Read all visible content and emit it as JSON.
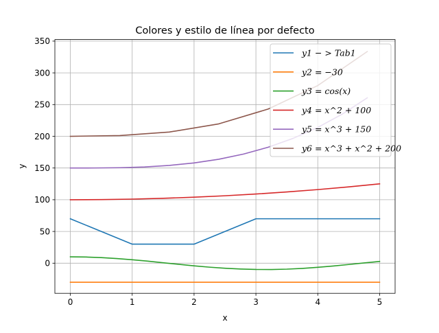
{
  "chart_data": {
    "type": "line",
    "title": "Colores y estilo de línea por defecto",
    "xlabel": "x",
    "ylabel": "y",
    "xlim": [
      -0.25,
      5.25
    ],
    "ylim": [
      -47.5,
      352.5
    ],
    "xticks": [
      0,
      1,
      2,
      3,
      4,
      5
    ],
    "xtick_labels": [
      "0",
      "1",
      "2",
      "3",
      "4",
      "5"
    ],
    "yticks": [
      0,
      50,
      100,
      150,
      200,
      250,
      300,
      350
    ],
    "ytick_labels": [
      "0",
      "50",
      "100",
      "150",
      "200",
      "250",
      "300",
      "350"
    ],
    "grid": true,
    "legend_position": "top-right",
    "series": [
      {
        "name": "y1 − > Tab1",
        "color": "#1f77b4",
        "x": [
          0,
          1,
          2,
          3,
          4,
          5
        ],
        "y": [
          70,
          30,
          30,
          70,
          70,
          70
        ]
      },
      {
        "name": "y2 = −30",
        "color": "#ff7f0e",
        "x": [
          0,
          5
        ],
        "y": [
          -30,
          -30
        ]
      },
      {
        "name": "y3 = cos(x)",
        "color": "#2ca02c",
        "x": [
          0,
          0.25,
          0.5,
          0.75,
          1.0,
          1.25,
          1.5,
          1.75,
          2.0,
          2.25,
          2.5,
          2.75,
          3.0,
          3.25,
          3.5,
          3.75,
          4.0,
          4.25,
          4.5,
          4.75,
          5.0
        ],
        "y": [
          10,
          9.7,
          8.8,
          7.3,
          5.4,
          3.2,
          0.7,
          -1.8,
          -4.2,
          -6.3,
          -8.0,
          -9.2,
          -9.9,
          -10.0,
          -9.4,
          -8.2,
          -6.5,
          -4.5,
          -2.1,
          0.4,
          2.8
        ]
      },
      {
        "name": "y4 = x^2 + 100",
        "color": "#d62728",
        "x": [
          0,
          0.5,
          1,
          1.5,
          2,
          2.5,
          3,
          3.5,
          4,
          4.5,
          5
        ],
        "y": [
          100,
          100.25,
          101,
          102.25,
          104,
          106.25,
          109,
          112.25,
          116,
          120.25,
          125
        ]
      },
      {
        "name": "y5 = x^3 + 150",
        "color": "#9467bd",
        "x": [
          0,
          0.4,
          0.8,
          1.2,
          1.6,
          2.0,
          2.4,
          2.8,
          3.2,
          3.6,
          4.0,
          4.4,
          4.8
        ],
        "y": [
          150,
          150.1,
          150.5,
          151.7,
          154.1,
          158,
          163.8,
          172,
          182.8,
          196.7,
          214,
          235.2,
          260.6
        ]
      },
      {
        "name": "y6 = x^3 + x^2 + 200",
        "color": "#8c564b",
        "x": [
          0,
          0.8,
          1.6,
          2.4,
          3.2,
          4.0,
          4.8
        ],
        "y": [
          200,
          201.2,
          206.7,
          219.6,
          243,
          280,
          333.6
        ]
      }
    ]
  }
}
